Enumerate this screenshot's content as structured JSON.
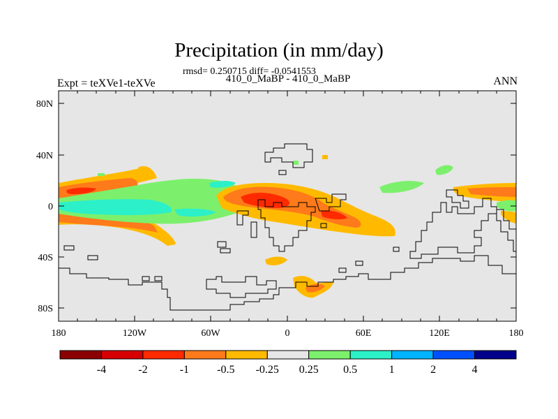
{
  "title": "Precipitation (in mm/day)",
  "subtitle": "rmsd= 0.250715 diff= -0.0541553",
  "center_label": "410_0_MaBP - 410_0_MaBP",
  "left_label": "Expt = teXVe1-teXVe",
  "right_label": "ANN",
  "axes": {
    "x_ticks": [
      "180",
      "120W",
      "60W",
      "0",
      "60E",
      "120E",
      "180"
    ],
    "y_ticks": [
      "80N",
      "40N",
      "0",
      "40S",
      "80S"
    ]
  },
  "colorbar": {
    "labels": [
      "-4",
      "-2",
      "-1",
      "-0.5",
      "-0.25",
      "0.25",
      "0.5",
      "1",
      "2",
      "4"
    ],
    "colors": [
      "#8b0000",
      "#d70000",
      "#ff2a00",
      "#ff7a1a",
      "#ffba00",
      "#e6e6e6",
      "#7cf06c",
      "#2cf0c8",
      "#00b4ff",
      "#0050ff",
      "#00008b"
    ]
  },
  "colors": {
    "background": "#e6e6e6",
    "coastline": "#000000"
  }
}
